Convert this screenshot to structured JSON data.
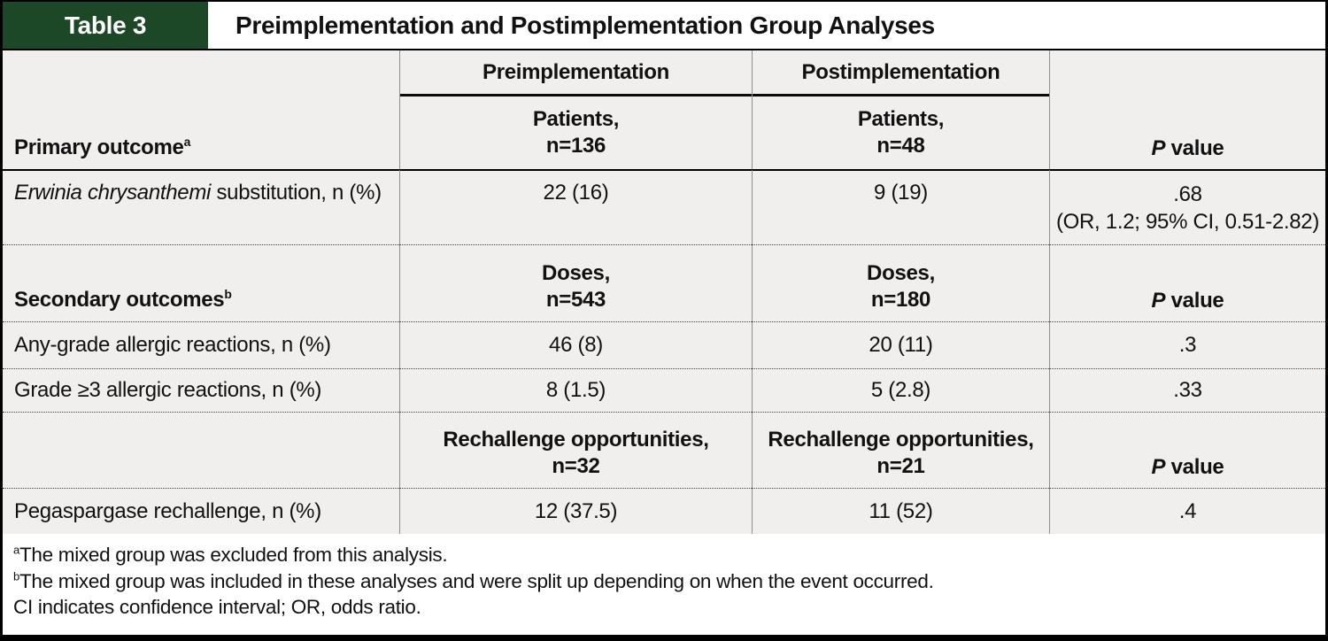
{
  "colors": {
    "accent_green": "#1c4827",
    "table_bg": "#f0efed",
    "border": "#000000",
    "grid_line": "#8f8f8f"
  },
  "header": {
    "table_label": "Table 3",
    "title": "Preimplementation and Postimplementation Group Analyses"
  },
  "columns": {
    "group1": "Preimplementation",
    "group2": "Postimplementation"
  },
  "sections": [
    {
      "label": "Primary outcome",
      "sup": "a",
      "pre_head": [
        "Patients,",
        "n=136"
      ],
      "post_head": [
        "Patients,",
        "n=48"
      ],
      "p_head": {
        "italic": "P",
        "rest": " value"
      },
      "rows": [
        {
          "label_italic": "Erwinia chrysanthemi",
          "label_rest": " substitution, n (%)",
          "pre": "22 (16)",
          "post": "9 (19)",
          "p": ".68",
          "p_detail": "(OR, 1.2; 95% CI, 0.51-2.82)"
        }
      ]
    },
    {
      "label": "Secondary outcomes",
      "sup": "b",
      "pre_head": [
        "Doses,",
        "n=543"
      ],
      "post_head": [
        "Doses,",
        "n=180"
      ],
      "p_head": {
        "italic": "P",
        "rest": " value"
      },
      "rows": [
        {
          "label": "Any-grade allergic reactions, n (%)",
          "pre": "46 (8)",
          "post": "20 (11)",
          "p": ".3"
        },
        {
          "label": "Grade ≥3 allergic reactions, n (%)",
          "pre": "8 (1.5)",
          "post": "5 (2.8)",
          "p": ".33"
        }
      ]
    },
    {
      "label": "",
      "sup": "",
      "pre_head": [
        "Rechallenge opportunities,",
        "n=32"
      ],
      "post_head": [
        "Rechallenge opportunities,",
        "n=21"
      ],
      "p_head": {
        "italic": "P",
        "rest": " value"
      },
      "rows": [
        {
          "label": "Pegaspargase rechallenge, n (%)",
          "pre": "12 (37.5)",
          "post": "11 (52)",
          "p": ".4"
        }
      ]
    }
  ],
  "footnotes": [
    {
      "sup": "a",
      "text": "The mixed group was excluded from this analysis."
    },
    {
      "sup": "b",
      "text": "The mixed group was included in these analyses and were split up depending on when the event occurred."
    },
    {
      "sup": "",
      "text": "CI indicates confidence interval; OR, odds ratio."
    }
  ]
}
